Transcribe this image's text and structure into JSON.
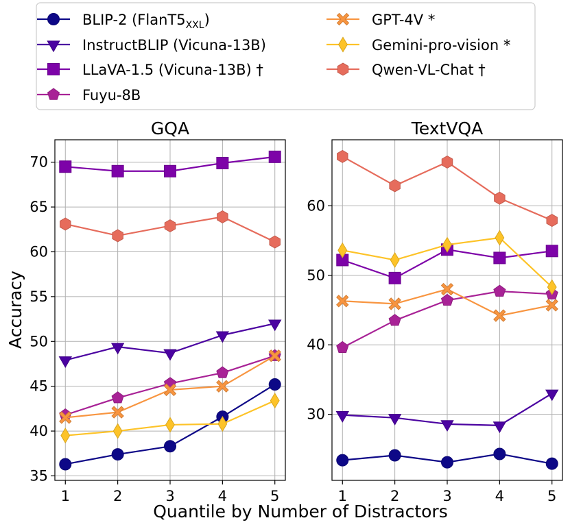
{
  "chart_data": [
    {
      "type": "line",
      "title": "GQA",
      "xlabel": "",
      "ylabel": "Accuracy",
      "x": [
        1,
        2,
        3,
        4,
        5
      ],
      "xticks": [
        "1",
        "2",
        "3",
        "4",
        "5"
      ],
      "ylim": [
        34.5,
        72.5
      ],
      "yticks": [
        "35",
        "40",
        "45",
        "50",
        "55",
        "60",
        "65",
        "70"
      ],
      "grid": true,
      "series": [
        {
          "name": "BLIP-2 (FlanT5XXL)",
          "values": [
            36.3,
            37.4,
            38.3,
            41.6,
            45.2
          ]
        },
        {
          "name": "InstructBLIP (Vicuna-13B)",
          "values": [
            47.9,
            49.4,
            48.7,
            50.7,
            52.0
          ]
        },
        {
          "name": "LLaVA-1.5 (Vicuna-13B) †",
          "values": [
            69.5,
            69.0,
            69.0,
            69.9,
            70.6
          ]
        },
        {
          "name": "Fuyu-8B",
          "values": [
            41.8,
            43.7,
            45.3,
            46.5,
            48.4
          ]
        },
        {
          "name": "GPT-4V *",
          "values": [
            41.5,
            42.1,
            44.6,
            45.0,
            48.4
          ]
        },
        {
          "name": "Gemini-pro-vision *",
          "values": [
            39.5,
            40.0,
            40.7,
            40.8,
            43.4
          ]
        },
        {
          "name": "Qwen-VL-Chat †",
          "values": [
            63.1,
            61.8,
            62.9,
            63.9,
            61.1
          ]
        }
      ]
    },
    {
      "type": "line",
      "title": "TextVQA",
      "xlabel": "",
      "ylabel": "",
      "x": [
        1,
        2,
        3,
        4,
        5
      ],
      "xticks": [
        "1",
        "2",
        "3",
        "4",
        "5"
      ],
      "ylim": [
        20.5,
        69.5
      ],
      "yticks": [
        "30",
        "40",
        "50",
        "60"
      ],
      "grid": true,
      "series": [
        {
          "name": "BLIP-2 (FlanT5XXL)",
          "values": [
            23.4,
            24.1,
            23.1,
            24.3,
            22.9
          ]
        },
        {
          "name": "InstructBLIP (Vicuna-13B)",
          "values": [
            29.9,
            29.5,
            28.6,
            28.4,
            33.0
          ]
        },
        {
          "name": "LLaVA-1.5 (Vicuna-13B) †",
          "values": [
            52.2,
            49.6,
            53.7,
            52.5,
            53.5
          ]
        },
        {
          "name": "Fuyu-8B",
          "values": [
            39.6,
            43.5,
            46.4,
            47.7,
            47.3
          ]
        },
        {
          "name": "GPT-4V *",
          "values": [
            46.3,
            45.9,
            48.0,
            44.2,
            45.7
          ]
        },
        {
          "name": "Gemini-pro-vision *",
          "values": [
            53.6,
            52.2,
            54.4,
            55.4,
            48.3
          ]
        },
        {
          "name": "Qwen-VL-Chat †",
          "values": [
            67.1,
            62.9,
            66.3,
            61.1,
            57.9
          ]
        }
      ]
    }
  ],
  "shared_xlabel": "Quantile by Number of Distractors",
  "legend": {
    "placement": "top",
    "entries": [
      {
        "label": "BLIP-2 (FlanT5",
        "sub": "XXL",
        "suffix": ")",
        "color": "#0d0887",
        "marker": "circle"
      },
      {
        "label": "InstructBLIP (Vicuna-13B)",
        "sub": "",
        "suffix": "",
        "color": "#4b03a1",
        "marker": "triangle-down"
      },
      {
        "label": "LLaVA-1.5 (Vicuna-13B) †",
        "sub": "",
        "suffix": "",
        "color": "#7d03a8",
        "marker": "square"
      },
      {
        "label": "Fuyu-8B",
        "sub": "",
        "suffix": "",
        "color": "#a82296",
        "marker": "pentagon"
      },
      {
        "label": "GPT-4V *",
        "sub": "",
        "suffix": "",
        "color": "#f89540",
        "marker": "x-filled"
      },
      {
        "label": "Gemini-pro-vision *",
        "sub": "",
        "suffix": "",
        "color": "#fdc328",
        "marker": "diamond"
      },
      {
        "label": "Qwen-VL-Chat †",
        "sub": "",
        "suffix": "",
        "color": "#e66c5c",
        "marker": "hexagon"
      }
    ]
  }
}
